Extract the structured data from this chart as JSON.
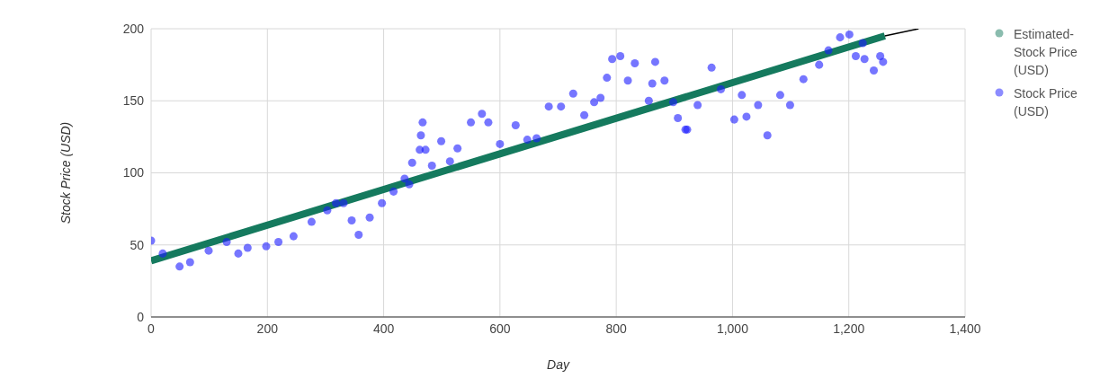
{
  "chart_data": {
    "type": "scatter",
    "xlabel": "Day",
    "ylabel": "Stock Price (USD)",
    "xlim": [
      0,
      1400
    ],
    "xticks": [
      0,
      200,
      400,
      600,
      800,
      {
        "value": 1000,
        "label": "1,000"
      },
      {
        "value": 1200,
        "label": "1,200"
      },
      {
        "value": 1400,
        "label": "1,400"
      }
    ],
    "ylim": [
      0,
      200
    ],
    "yticks": [
      0,
      50,
      100,
      150,
      200
    ],
    "grid": true,
    "legend": "top right",
    "series": [
      {
        "name": "Estimated-Stock Price (USD)",
        "type": "line",
        "color": "#157a5e",
        "x": [
          0,
          1262
        ],
        "values": [
          39,
          195
        ]
      },
      {
        "type": "line",
        "color": "#000000",
        "x": [
          1262,
          1320
        ],
        "values": [
          195,
          200
        ]
      },
      {
        "name": "Stock Price (USD)",
        "marker": "circle",
        "color": "#1a1aff",
        "x": [
          0,
          20,
          49,
          67,
          99,
          130,
          150,
          166,
          198,
          219,
          245,
          276,
          303,
          318,
          331,
          345,
          357,
          376,
          397,
          417,
          436,
          444,
          449,
          462,
          464,
          467,
          472,
          483,
          499,
          514,
          527,
          550,
          569,
          580,
          600,
          627,
          647,
          663,
          684,
          705,
          726,
          745,
          762,
          773,
          784,
          793,
          807,
          820,
          832,
          856,
          862,
          867,
          883,
          898,
          906,
          919,
          922,
          940,
          964,
          980,
          1003,
          1016,
          1024,
          1044,
          1060,
          1082,
          1099,
          1122,
          1149,
          1165,
          1185,
          1201,
          1212,
          1224,
          1227,
          1243,
          1254,
          1259
        ],
        "values": [
          53,
          44,
          35,
          38,
          46,
          52,
          44,
          48,
          49,
          52,
          56,
          66,
          74,
          79,
          79,
          67,
          57,
          69,
          79,
          87,
          96,
          92,
          107,
          116,
          126,
          135,
          116,
          105,
          122,
          108,
          117,
          135,
          141,
          135,
          120,
          133,
          123,
          124,
          146,
          146,
          155,
          140,
          149,
          152,
          166,
          179,
          181,
          164,
          176,
          150,
          162,
          177,
          164,
          149,
          138,
          130,
          130,
          147,
          173,
          158,
          137,
          154,
          139,
          147,
          126,
          154,
          147,
          165,
          175,
          185,
          194,
          196,
          181,
          190,
          179,
          171,
          181,
          177
        ]
      }
    ]
  }
}
